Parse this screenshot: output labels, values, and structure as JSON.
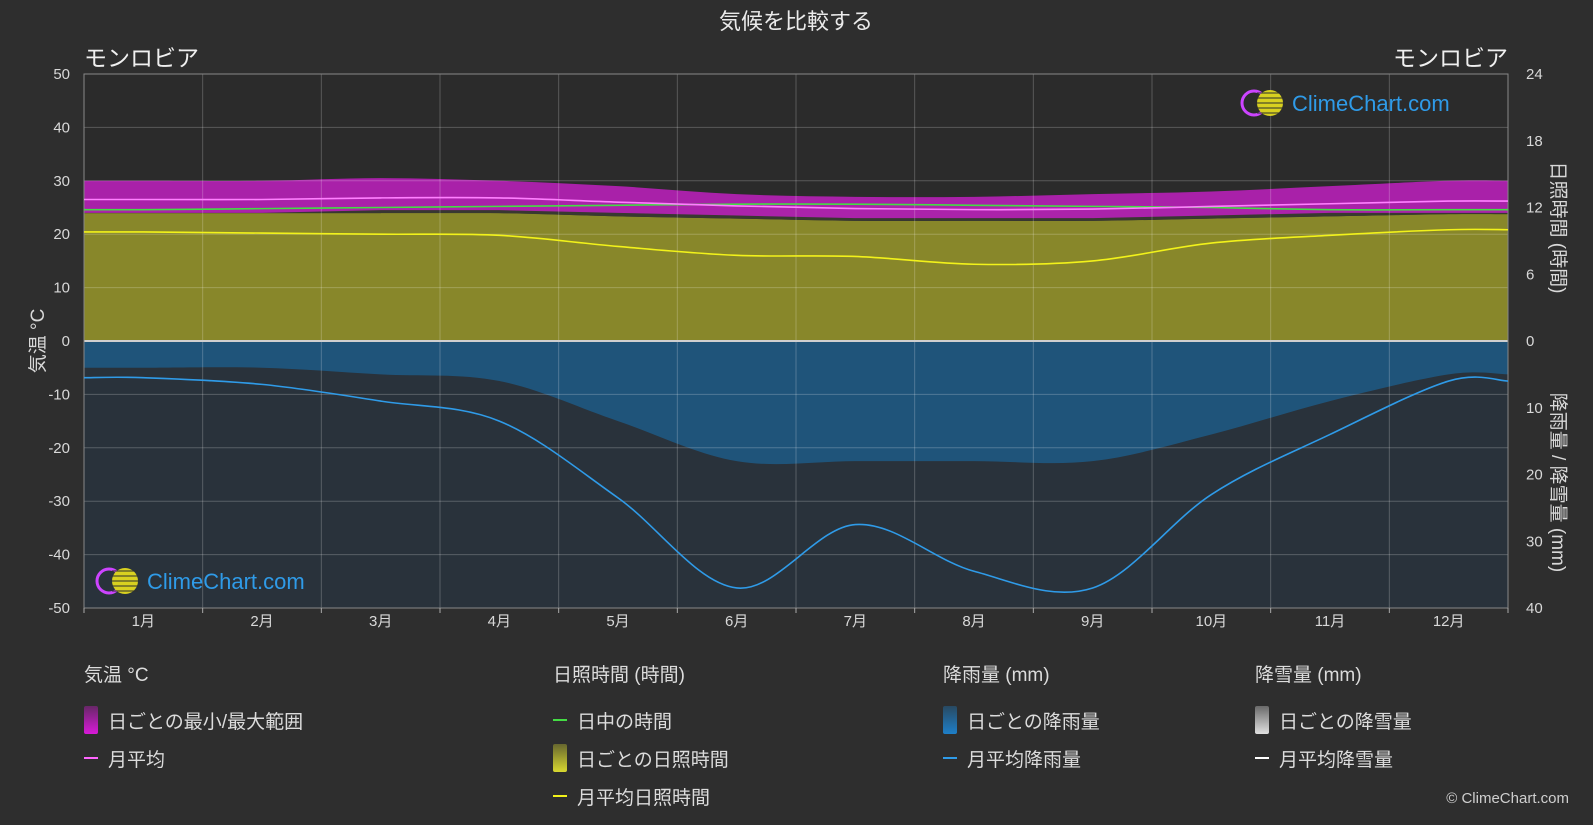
{
  "chart_data": {
    "type": "area",
    "title": "気候を比較する",
    "location_left": "モンロビア",
    "location_right": "モンロビア",
    "x_categories": [
      "1月",
      "2月",
      "3月",
      "4月",
      "5月",
      "6月",
      "7月",
      "8月",
      "9月",
      "10月",
      "11月",
      "12月"
    ],
    "y_left": {
      "label": "気温 °C",
      "min": -50,
      "max": 50,
      "ticks": [
        50,
        40,
        30,
        20,
        10,
        0,
        -10,
        -20,
        -30,
        -40,
        -50
      ]
    },
    "y_right_top": {
      "label": "日照時間 (時間)",
      "min": 0,
      "max": 24,
      "ticks": [
        24,
        18,
        12,
        6,
        0
      ]
    },
    "y_right_bottom": {
      "label": "降雨量 / 降雪量 (mm)",
      "min": 0,
      "max": 40,
      "ticks": [
        0,
        10,
        20,
        30,
        40
      ]
    },
    "grid": true,
    "series": [
      {
        "name": "日ごとの最小/最大範囲",
        "unit": "°C",
        "min": [
          24,
          24,
          24.5,
          24.5,
          24,
          23.5,
          23,
          23,
          23,
          23.5,
          24,
          24
        ],
        "max": [
          30,
          30,
          30.5,
          30,
          29,
          27.5,
          27,
          27,
          27.5,
          28,
          29,
          30
        ]
      },
      {
        "name": "月平均",
        "unit": "°C",
        "values": [
          26.5,
          26.5,
          26.8,
          26.8,
          26,
          25.3,
          24.8,
          24.6,
          24.7,
          25.2,
          25.7,
          26.2
        ]
      },
      {
        "name": "日中の時間",
        "unit": "時間",
        "values": [
          11.8,
          11.9,
          12.0,
          12.1,
          12.2,
          12.3,
          12.3,
          12.2,
          12.1,
          12.0,
          11.8,
          11.8
        ]
      },
      {
        "name": "日ごとの日照時間",
        "unit": "時間",
        "values": [
          11.5,
          11.5,
          11.5,
          11.5,
          11.2,
          11.0,
          10.8,
          10.8,
          10.8,
          11.0,
          11.2,
          11.4
        ]
      },
      {
        "name": "月平均日照時間",
        "unit": "時間",
        "values": [
          9.8,
          9.7,
          9.6,
          9.5,
          8.5,
          7.7,
          7.6,
          6.9,
          7.2,
          8.8,
          9.5,
          10
        ]
      },
      {
        "name": "日ごとの降雨量",
        "unit": "mm",
        "values": [
          4,
          4,
          5,
          6,
          12,
          18,
          18,
          18,
          18,
          14,
          9,
          5
        ]
      },
      {
        "name": "月平均降雨量",
        "unit": "mm",
        "values": [
          5.5,
          6.5,
          9.0,
          12.0,
          23.5,
          37.0,
          27.5,
          34.5,
          37.0,
          23.0,
          14.0,
          6.0
        ]
      },
      {
        "name": "日ごとの降雪量",
        "unit": "mm",
        "values": [
          0,
          0,
          0,
          0,
          0,
          0,
          0,
          0,
          0,
          0,
          0,
          0
        ]
      },
      {
        "name": "月平均降雪量",
        "unit": "mm",
        "values": [
          0,
          0,
          0,
          0,
          0,
          0,
          0,
          0,
          0,
          0,
          0,
          0
        ]
      }
    ]
  },
  "colors": {
    "background": "#2e2e2e",
    "plot_bg": "#2b2b2b",
    "temp_range": "#c020c0",
    "temp_avg": "#ff80ff",
    "daylight": "#44dd44",
    "sunshine_fill": "#8d8c2a",
    "sunshine_avg": "#f2f21a",
    "rain_fill": "#1d5a86",
    "rain_avg": "#2f9be8",
    "snow": "#ffffff",
    "brand": "#2f9be8"
  },
  "legend": {
    "groups": [
      {
        "title": "気温 °C",
        "items": [
          {
            "label": "日ごとの最小/最大範囲",
            "kind": "box",
            "color": "#d81ad8"
          },
          {
            "label": "月平均",
            "kind": "line",
            "color": "#ff66ff"
          }
        ]
      },
      {
        "title": "日照時間 (時間)",
        "items": [
          {
            "label": "日中の時間",
            "kind": "line",
            "color": "#44dd44"
          },
          {
            "label": "日ごとの日照時間",
            "kind": "box",
            "color": "#d8d830"
          },
          {
            "label": "月平均日照時間",
            "kind": "line",
            "color": "#f2f21a"
          }
        ]
      },
      {
        "title": "降雨量 (mm)",
        "items": [
          {
            "label": "日ごとの降雨量",
            "kind": "box",
            "color": "#1e7fc8"
          },
          {
            "label": "月平均降雨量",
            "kind": "line",
            "color": "#2f9be8"
          }
        ]
      },
      {
        "title": "降雪量 (mm)",
        "items": [
          {
            "label": "日ごとの降雪量",
            "kind": "box",
            "color": "#e0e0e0"
          },
          {
            "label": "月平均降雪量",
            "kind": "line",
            "color": "#ffffff"
          }
        ]
      }
    ]
  },
  "brand": {
    "text": "ClimeChart.com"
  },
  "copyright": "© ClimeChart.com"
}
